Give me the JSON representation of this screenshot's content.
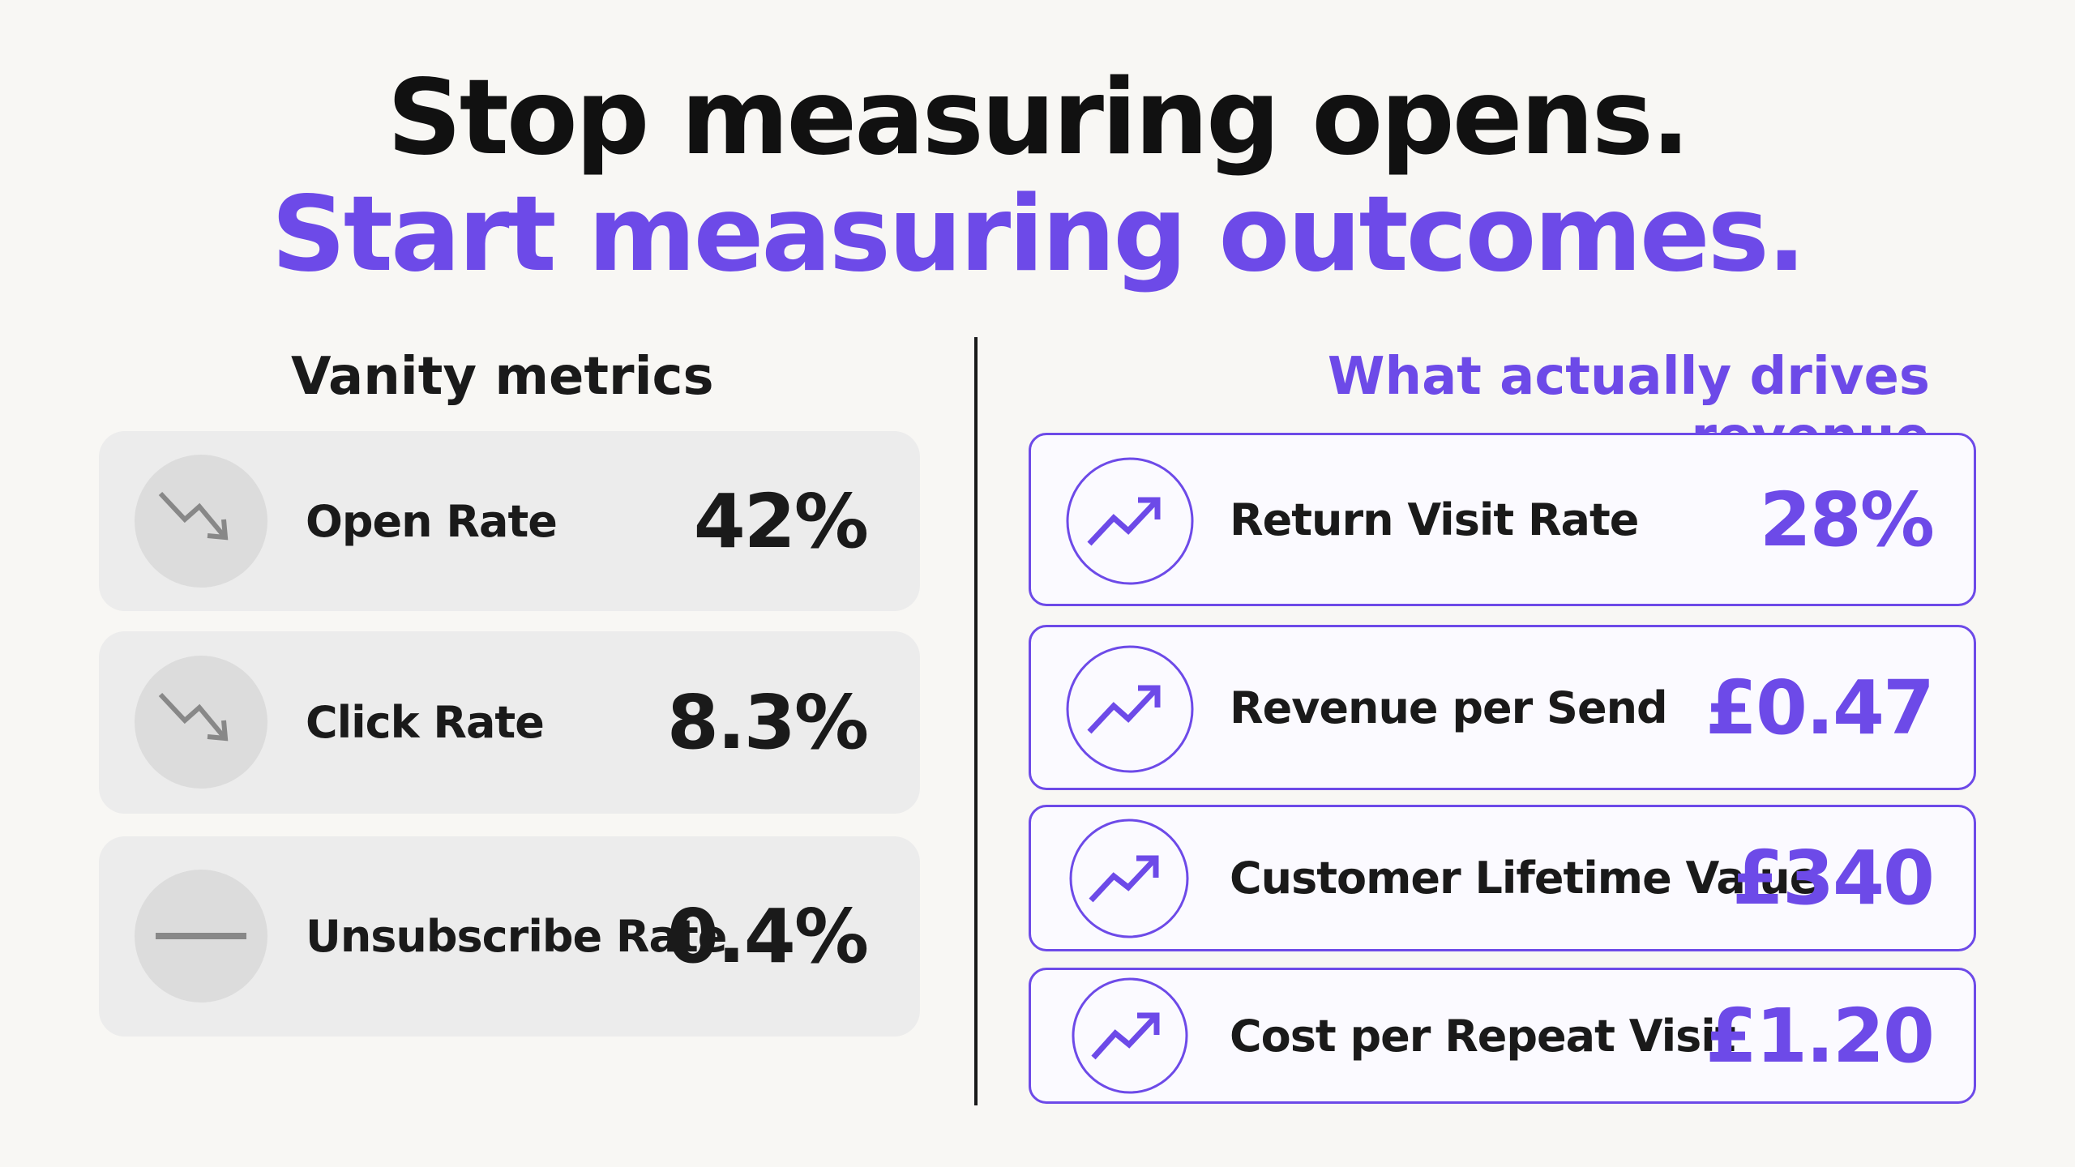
{
  "header": {
    "line1": "Stop measuring opens.",
    "line2": "Start measuring outcomes."
  },
  "left": {
    "heading": "Vanity metrics",
    "items": [
      {
        "label": "Open Rate",
        "value": "42%"
      },
      {
        "label": "Click Rate",
        "value": "8.3%"
      },
      {
        "label": "Unsubscribe Rate",
        "value": "0.4%"
      }
    ]
  },
  "right": {
    "heading": "What actually drives revenue",
    "items": [
      {
        "label": "Return Visit Rate",
        "value": "28%"
      },
      {
        "label": "Revenue per Send",
        "value": "£0.47"
      },
      {
        "label": "Customer Lifetime Value",
        "value": "£340"
      },
      {
        "label": "Cost per Repeat Visit",
        "value": "£1.20"
      }
    ]
  }
}
